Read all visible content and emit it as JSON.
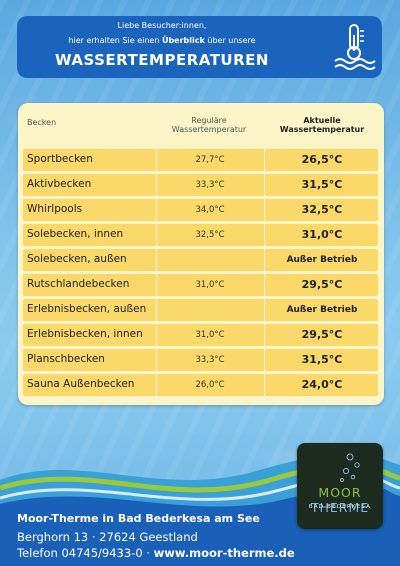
{
  "header": {
    "line1": "Liebe Besucher:innen,",
    "line2_pre": "hier erhalten Sie einen",
    "line2_bold": "Überblick",
    "line2_post": "über unsere",
    "title": "WASSERTEMPERATUREN",
    "icon": "thermometer-water-icon"
  },
  "table": {
    "columns": {
      "becken": "Becken",
      "regular": "Reguläre Wassertemperatur",
      "current": "Aktuelle Wassertemperatur"
    },
    "rows": [
      {
        "name": "Sportbecken",
        "regular": "27,7°C",
        "current": "26,5°C"
      },
      {
        "name": "Aktivbecken",
        "regular": "33,3°C",
        "current": "31,5°C"
      },
      {
        "name": "Whirlpools",
        "regular": "34,0°C",
        "current": "32,5°C"
      },
      {
        "name": "Solebecken, innen",
        "regular": "32,5°C",
        "current": "31,0°C"
      },
      {
        "name": "Solebecken, außen",
        "regular": "",
        "current": "Außer Betrieb"
      },
      {
        "name": "Rutschlandebecken",
        "regular": "31,0°C",
        "current": "29,5°C"
      },
      {
        "name": "Erlebnisbecken, außen",
        "regular": "",
        "current": "Außer Betrieb"
      },
      {
        "name": "Erlebnisbecken, innen",
        "regular": "31,0°C",
        "current": "29,5°C"
      },
      {
        "name": "Planschbecken",
        "regular": "33,3°C",
        "current": "31,5°C"
      },
      {
        "name": "Sauna Außenbecken",
        "regular": "26,0°C",
        "current": "24,0°C"
      }
    ]
  },
  "footer": {
    "name": "Moor-Therme in Bad Bederkesa am See",
    "address": "Berghorn 13 · 27624 Geestland",
    "phone": "Telefon 04745/9433-0 ·",
    "web": "www.moor-therme.de"
  },
  "logo": {
    "moor": "MOOR",
    "therme": "THERME",
    "sub": "BAD BEDERKESA"
  },
  "colors": {
    "header_blue": "#1a64bd",
    "row_yellow": "#fbd86a",
    "panel_cream": "#fbf5c7"
  }
}
